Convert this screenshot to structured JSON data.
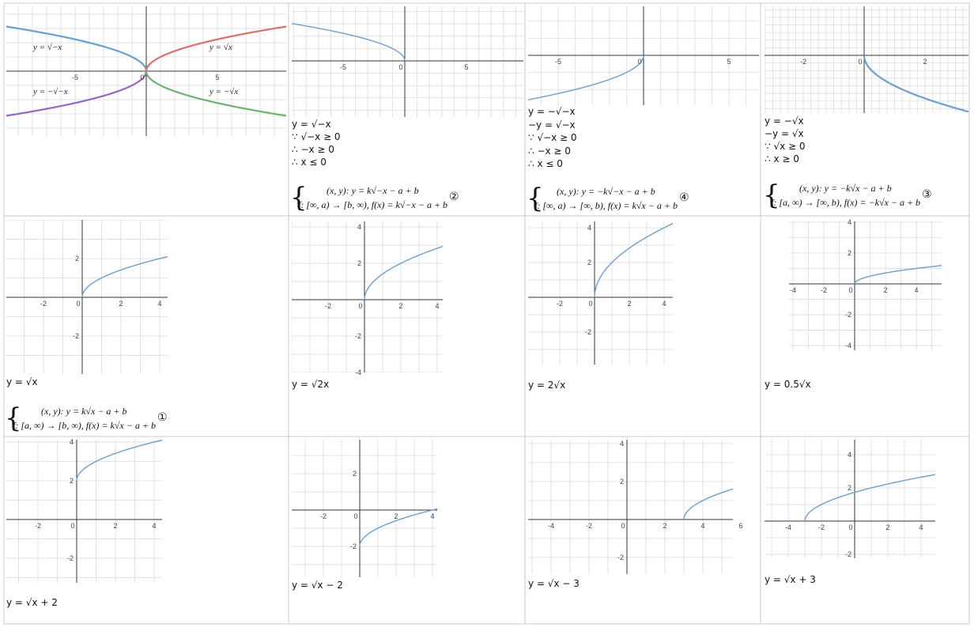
{
  "cells": [
    {
      "graph": {
        "xticks": [
          -5,
          0,
          5
        ],
        "labels": [
          "y = √−x",
          "y = √x",
          "y = −√−x",
          "y = −√x"
        ]
      }
    },
    {
      "graph": {
        "xticks": [
          -5,
          0,
          5
        ]
      },
      "lines": [
        "y = √−x",
        "∵ √−x ≥ 0",
        "∴ −x ≥ 0",
        "∴ x ≤ 0"
      ],
      "system": [
        "(x, y): y = k√−x − a + b",
        "f: [∞, a) → [b, ∞), f(x) = k√−x − a + b"
      ],
      "marker": "②"
    },
    {
      "graph": {
        "xticks": [
          -5,
          0,
          5
        ]
      },
      "lines": [
        "y = −√−x",
        "−y = √−x",
        "∵ √−x ≥ 0",
        "∴ −x ≥ 0",
        "∴ x ≤ 0"
      ],
      "system": [
        "(x, y): y = −k√−x − a + b",
        "f: [∞, a) → [∞, b), f(x) = k√x − a + b"
      ],
      "marker": "④"
    },
    {
      "graph": {
        "xticks": [
          -2,
          0,
          2
        ]
      },
      "lines": [
        "y = −√x",
        "−y = √x",
        "∵ √x ≥ 0",
        "∴ x ≥ 0"
      ],
      "system": [
        "(x, y): y = −k√x − a + b",
        "f: [a, ∞) → [∞, b), f(x) = −k√x − a + b"
      ],
      "marker": "③"
    },
    {
      "graph": {
        "xticks": [
          -2,
          0,
          2,
          4
        ],
        "yticks": [
          2,
          -2
        ]
      },
      "lines": [
        "y = √x"
      ],
      "system": [
        "(x, y): y = k√x − a + b",
        "f: [a, ∞) → [b, ∞), f(x) = k√x − a + b"
      ],
      "marker": "①"
    },
    {
      "graph": {
        "xticks": [
          -2,
          0,
          2,
          4
        ],
        "yticks": [
          4,
          2,
          -2,
          -4
        ]
      },
      "lines": [
        "y = √2x"
      ]
    },
    {
      "graph": {
        "xticks": [
          -2,
          0,
          2,
          4
        ],
        "yticks": [
          4,
          2,
          -2
        ]
      },
      "lines": [
        "y = 2√x"
      ]
    },
    {
      "graph": {
        "xticks": [
          -4,
          -2,
          0,
          2,
          4
        ],
        "yticks": [
          4,
          2,
          -2,
          -4
        ]
      },
      "lines": [
        "y = 0.5√x"
      ]
    },
    {
      "graph": {
        "xticks": [
          -2,
          0,
          2,
          4
        ],
        "yticks": [
          4,
          2,
          -2
        ]
      },
      "lines": [
        "y = √x + 2"
      ]
    },
    {
      "graph": {
        "xticks": [
          -2,
          0,
          2,
          4
        ],
        "yticks": [
          2,
          -2
        ]
      },
      "lines": [
        "y = √x − 2"
      ]
    },
    {
      "graph": {
        "xticks": [
          -4,
          -2,
          0,
          2,
          4,
          6
        ],
        "yticks": [
          4,
          2,
          -2
        ]
      },
      "lines": [
        "y = √x − 3"
      ]
    },
    {
      "graph": {
        "xticks": [
          -4,
          -2,
          0,
          2,
          4
        ],
        "yticks": [
          4,
          2,
          -2
        ]
      },
      "lines": [
        "y = √x + 3"
      ]
    }
  ]
}
